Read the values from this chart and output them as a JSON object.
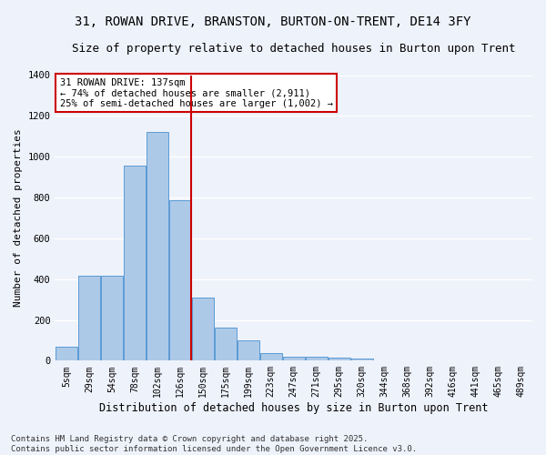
{
  "title_line1": "31, ROWAN DRIVE, BRANSTON, BURTON-ON-TRENT, DE14 3FY",
  "title_line2": "Size of property relative to detached houses in Burton upon Trent",
  "xlabel": "Distribution of detached houses by size in Burton upon Trent",
  "ylabel": "Number of detached properties",
  "bar_labels": [
    "5sqm",
    "29sqm",
    "54sqm",
    "78sqm",
    "102sqm",
    "126sqm",
    "150sqm",
    "175sqm",
    "199sqm",
    "223sqm",
    "247sqm",
    "271sqm",
    "295sqm",
    "320sqm",
    "344sqm",
    "368sqm",
    "392sqm",
    "416sqm",
    "441sqm",
    "465sqm",
    "489sqm"
  ],
  "bar_values": [
    70,
    415,
    415,
    955,
    1120,
    785,
    310,
    160,
    100,
    35,
    20,
    20,
    15,
    10,
    0,
    0,
    0,
    0,
    0,
    0,
    0
  ],
  "bar_color": "#adc9e8",
  "bar_edge_color": "#5b9bd5",
  "ylim": [
    0,
    1400
  ],
  "yticks": [
    0,
    200,
    400,
    600,
    800,
    1000,
    1200,
    1400
  ],
  "vline_x": 5.5,
  "vline_color": "#cc0000",
  "annotation_text": "31 ROWAN DRIVE: 137sqm\n← 74% of detached houses are smaller (2,911)\n25% of semi-detached houses are larger (1,002) →",
  "annotation_box_color": "#cc0000",
  "footer_line1": "Contains HM Land Registry data © Crown copyright and database right 2025.",
  "footer_line2": "Contains public sector information licensed under the Open Government Licence v3.0.",
  "background_color": "#eef2fb",
  "grid_color": "#ffffff",
  "title_fontsize": 10,
  "subtitle_fontsize": 9,
  "axis_label_fontsize": 8.5,
  "tick_fontsize": 7,
  "annotation_fontsize": 7.5,
  "footer_fontsize": 6.5,
  "ylabel_fontsize": 8
}
